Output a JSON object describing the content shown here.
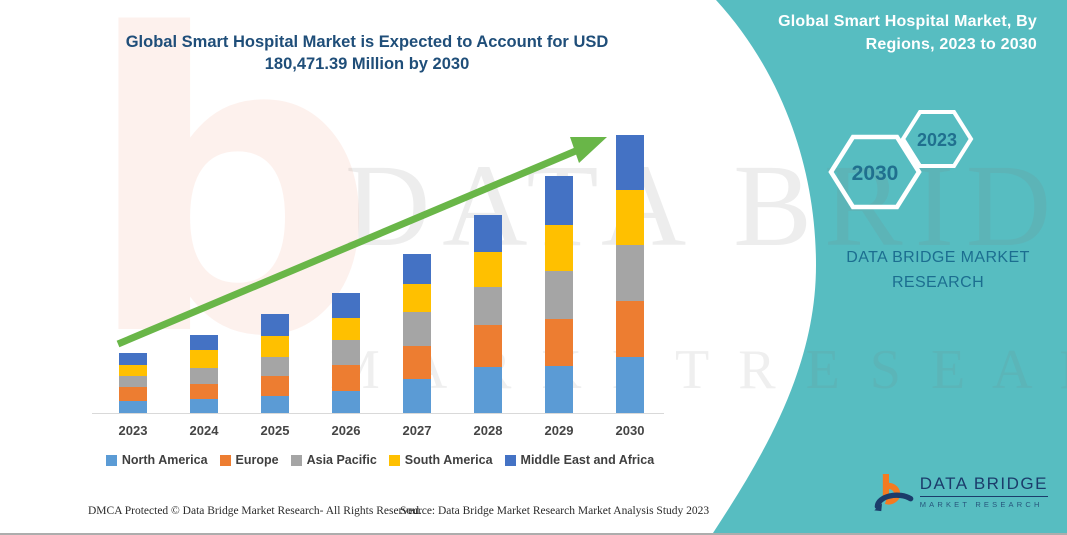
{
  "title": "Global Smart Hospital Market is Expected to Account for USD 180,471.39 Million by 2030",
  "panel": {
    "heading": "Global Smart Hospital Market, By Regions, 2023 to 2030",
    "hexagons": [
      {
        "year": "2030"
      },
      {
        "year": "2023"
      }
    ],
    "brand_text": "DATA BRIDGE MARKET RESEARCH"
  },
  "logo": {
    "name": "DATA BRIDGE",
    "tagline": "MARKET RESEARCH"
  },
  "watermark": {
    "glyph": "b",
    "brand": "DATA BRIDGE",
    "tagline": "M A R K E T   R E S E A R C H"
  },
  "footer": {
    "dmca": "DMCA Protected © Data Bridge Market Research-  All Rights Reserved.",
    "source": "Source: Data Bridge Market Research  Market Analysis Study 2023"
  },
  "colors": {
    "panel_teal": "#57BDC1",
    "title_blue": "#1F4E79",
    "panel_text_blue": "#1C6E90",
    "arrow_green": "#69B648",
    "axis_gray": "#D9D9D9",
    "logo_navy": "#1B3C6B",
    "logo_orange": "#F47B20"
  },
  "chart_data": {
    "type": "bar",
    "stacked": true,
    "title": "Global Smart Hospital Market is Expected to Account for USD 180,471.39 Million by 2030",
    "xlabel": "",
    "ylabel": "",
    "value_units": "relative stacked heights (no value axis shown in figure)",
    "grid": false,
    "legend_position": "bottom",
    "categories": [
      "2023",
      "2024",
      "2025",
      "2026",
      "2027",
      "2028",
      "2029",
      "2030"
    ],
    "series": [
      {
        "name": "North America",
        "color": "#5B9BD5",
        "values": [
          12,
          14,
          17,
          22,
          34,
          46,
          47,
          56
        ]
      },
      {
        "name": "Europe",
        "color": "#ED7D31",
        "values": [
          14,
          15,
          20,
          26,
          33,
          42,
          47,
          56
        ]
      },
      {
        "name": "Asia Pacific",
        "color": "#A5A5A5",
        "values": [
          11,
          16,
          19,
          25,
          34,
          38,
          48,
          56
        ]
      },
      {
        "name": "South America",
        "color": "#FFC000",
        "values": [
          11,
          18,
          21,
          22,
          28,
          35,
          46,
          55
        ]
      },
      {
        "name": "Middle East and Africa",
        "color": "#4472C4",
        "values": [
          12,
          15,
          22,
          25,
          30,
          37,
          49,
          55
        ]
      }
    ],
    "totals_relative": [
      60,
      78,
      99,
      120,
      159,
      198,
      237,
      278
    ],
    "annotations": [
      "Green upward trend arrow from the 2023 bar to the 2030 bar"
    ]
  }
}
